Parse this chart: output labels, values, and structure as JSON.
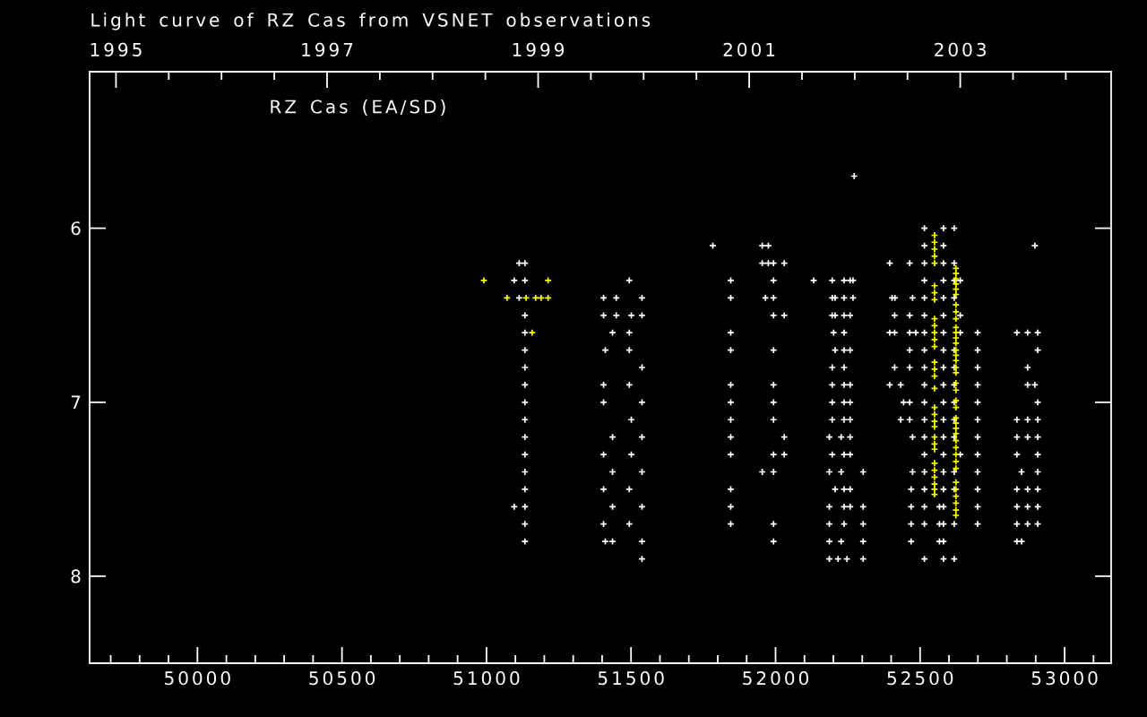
{
  "chart_data": {
    "type": "scatter",
    "title": "Light curve of RZ Cas from VSNET observations",
    "annotations": [
      "RZ Cas (EA/SD)"
    ],
    "marker": "cross",
    "xlim": [
      49627,
      53161
    ],
    "ylim": [
      8.5,
      5.1
    ],
    "xticks": [
      {
        "value": 49700,
        "label": null
      },
      {
        "value": 49800,
        "label": null
      },
      {
        "value": 49900,
        "label": null
      },
      50000,
      {
        "value": 50100,
        "label": null
      },
      {
        "value": 50200,
        "label": null
      },
      {
        "value": 50300,
        "label": null
      },
      {
        "value": 50400,
        "label": null
      },
      50500,
      {
        "value": 50600,
        "label": null
      },
      {
        "value": 50700,
        "label": null
      },
      {
        "value": 50800,
        "label": null
      },
      {
        "value": 50900,
        "label": null
      },
      51000,
      {
        "value": 51100,
        "label": null
      },
      {
        "value": 51200,
        "label": null
      },
      {
        "value": 51300,
        "label": null
      },
      {
        "value": 51400,
        "label": null
      },
      51500,
      {
        "value": 51600,
        "label": null
      },
      {
        "value": 51700,
        "label": null
      },
      {
        "value": 51800,
        "label": null
      },
      {
        "value": 51900,
        "label": null
      },
      52000,
      {
        "value": 52100,
        "label": null
      },
      {
        "value": 52200,
        "label": null
      },
      {
        "value": 52300,
        "label": null
      },
      {
        "value": 52400,
        "label": null
      },
      52500,
      {
        "value": 52600,
        "label": null
      },
      {
        "value": 52700,
        "label": null
      },
      {
        "value": 52800,
        "label": null
      },
      {
        "value": 52900,
        "label": null
      },
      53000,
      {
        "value": 53100,
        "label": null
      }
    ],
    "yticks": [
      6,
      7,
      8
    ],
    "x2lim": [
      1994.75,
      2004.43
    ],
    "x2ticks": [
      1995,
      {
        "value": 1995.5,
        "label": null
      },
      {
        "value": 1996,
        "label": null
      },
      {
        "value": 1996.5,
        "label": null
      },
      1997,
      {
        "value": 1997.5,
        "label": null
      },
      {
        "value": 1998,
        "label": null
      },
      {
        "value": 1998.5,
        "label": null
      },
      1999,
      {
        "value": 1999.5,
        "label": null
      },
      {
        "value": 2000,
        "label": null
      },
      {
        "value": 2000.5,
        "label": null
      },
      2001,
      {
        "value": 2001.5,
        "label": null
      },
      {
        "value": 2002,
        "label": null
      },
      {
        "value": 2002.5,
        "label": null
      },
      2003,
      {
        "value": 2003.5,
        "label": null
      },
      {
        "value": 2004,
        "label": null
      }
    ],
    "series": [
      {
        "color": "#ffffff",
        "x": [
          51113,
          51133,
          51096,
          51133,
          51113,
          51133,
          51133,
          51133,
          51133,
          51133,
          51133,
          51133,
          51133,
          51133,
          51133,
          51133,
          51096,
          51133,
          51133,
          51133,
          51494,
          51405,
          51449,
          51538,
          51405,
          51449,
          51501,
          51538,
          51436,
          51494,
          51411,
          51494,
          51538,
          51405,
          51494,
          51405,
          51538,
          51501,
          51436,
          51538,
          51405,
          51501,
          51436,
          51538,
          51405,
          51494,
          51436,
          51538,
          51405,
          51494,
          51411,
          51436,
          51538,
          51538,
          51783,
          51845,
          51845,
          51845,
          51845,
          51845,
          51845,
          51845,
          51845,
          51845,
          51845,
          51845,
          51845,
          51954,
          51975,
          51954,
          51975,
          51993,
          52030,
          51993,
          51965,
          51993,
          51993,
          52030,
          51993,
          51993,
          51993,
          51993,
          52030,
          51993,
          52030,
          51954,
          51993,
          51993,
          51993,
          52132,
          52196,
          52237,
          52258,
          52268,
          52272,
          52196,
          52206,
          52237,
          52268,
          52196,
          52206,
          52237,
          52258,
          52201,
          52237,
          52206,
          52237,
          52258,
          52196,
          52237,
          52196,
          52237,
          52258,
          52196,
          52237,
          52258,
          52196,
          52237,
          52258,
          52186,
          52227,
          52258,
          52196,
          52237,
          52258,
          52186,
          52227,
          52303,
          52206,
          52237,
          52258,
          52186,
          52237,
          52258,
          52303,
          52186,
          52237,
          52303,
          52186,
          52227,
          52303,
          52186,
          52216,
          52247,
          52303,
          52395,
          52464,
          52403,
          52413,
          52474,
          52412,
          52464,
          52395,
          52412,
          52464,
          52485,
          52464,
          52412,
          52464,
          52395,
          52433,
          52443,
          52464,
          52433,
          52464,
          52474,
          52474,
          52469,
          52469,
          52469,
          52469,
          52515,
          52581,
          52618,
          52515,
          52581,
          52515,
          52581,
          52618,
          52515,
          52581,
          52618,
          52639,
          52515,
          52581,
          52618,
          52515,
          52581,
          52639,
          52515,
          52581,
          52639,
          52515,
          52581,
          52618,
          52515,
          52581,
          52618,
          52515,
          52581,
          52618,
          52515,
          52581,
          52618,
          52515,
          52581,
          52618,
          52515,
          52581,
          52618,
          52515,
          52581,
          52639,
          52515,
          52581,
          52618,
          52515,
          52581,
          52618,
          52515,
          52567,
          52581,
          52515,
          52567,
          52581,
          52618,
          52567,
          52581,
          52515,
          52581,
          52618,
          52699,
          52699,
          52699,
          52699,
          52699,
          52699,
          52699,
          52699,
          52699,
          52699,
          52699,
          52699,
          52897,
          52835,
          52872,
          52907,
          52907,
          52872,
          52872,
          52897,
          52907,
          52835,
          52872,
          52907,
          52835,
          52872,
          52907,
          52835,
          52907,
          52851,
          52907,
          52835,
          52872,
          52907,
          52835,
          52872,
          52907,
          52835,
          52872,
          52907,
          52835,
          52851
        ],
        "values": [
          6.2,
          6.2,
          6.3,
          6.3,
          6.4,
          6.5,
          6.6,
          6.7,
          6.8,
          6.9,
          7.0,
          7.1,
          7.2,
          7.3,
          7.4,
          7.5,
          7.6,
          7.6,
          7.7,
          7.8,
          6.3,
          6.4,
          6.4,
          6.4,
          6.5,
          6.5,
          6.5,
          6.5,
          6.6,
          6.6,
          6.7,
          6.7,
          6.8,
          6.9,
          6.9,
          7.0,
          7.0,
          7.1,
          7.2,
          7.2,
          7.3,
          7.3,
          7.4,
          7.4,
          7.5,
          7.5,
          7.6,
          7.6,
          7.7,
          7.7,
          7.8,
          7.8,
          7.8,
          7.9,
          6.1,
          6.3,
          6.4,
          6.6,
          6.7,
          6.9,
          7.0,
          7.1,
          7.2,
          7.3,
          7.5,
          7.6,
          7.7,
          6.1,
          6.1,
          6.2,
          6.2,
          6.2,
          6.2,
          6.3,
          6.4,
          6.4,
          6.5,
          6.5,
          6.7,
          6.9,
          7.0,
          7.1,
          7.2,
          7.3,
          7.3,
          7.4,
          7.4,
          7.7,
          7.8,
          6.3,
          6.3,
          6.3,
          6.3,
          6.3,
          5.7,
          6.4,
          6.4,
          6.4,
          6.4,
          6.5,
          6.5,
          6.5,
          6.5,
          6.6,
          6.6,
          6.7,
          6.7,
          6.7,
          6.8,
          6.8,
          6.9,
          6.9,
          6.9,
          7.0,
          7.0,
          7.0,
          7.1,
          7.1,
          7.1,
          7.2,
          7.2,
          7.2,
          7.3,
          7.3,
          7.3,
          7.4,
          7.4,
          7.4,
          7.5,
          7.5,
          7.5,
          7.6,
          7.6,
          7.6,
          7.6,
          7.7,
          7.7,
          7.7,
          7.8,
          7.8,
          7.8,
          7.9,
          7.9,
          7.9,
          7.9,
          6.2,
          6.2,
          6.4,
          6.4,
          6.4,
          6.5,
          6.5,
          6.6,
          6.6,
          6.6,
          6.6,
          6.7,
          6.8,
          6.8,
          6.9,
          6.9,
          7.0,
          7.0,
          7.1,
          7.1,
          7.2,
          7.4,
          7.5,
          7.6,
          7.7,
          7.8,
          6.0,
          6.0,
          6.0,
          6.1,
          6.1,
          6.2,
          6.2,
          6.2,
          6.3,
          6.3,
          6.3,
          6.3,
          6.4,
          6.4,
          6.4,
          6.5,
          6.5,
          6.5,
          6.6,
          6.6,
          6.6,
          6.7,
          6.7,
          6.7,
          6.8,
          6.8,
          6.8,
          6.9,
          6.9,
          6.9,
          7.0,
          7.0,
          7.0,
          7.1,
          7.1,
          7.1,
          7.2,
          7.2,
          7.2,
          7.3,
          7.3,
          7.3,
          7.4,
          7.4,
          7.4,
          7.5,
          7.5,
          7.5,
          7.6,
          7.6,
          7.6,
          7.7,
          7.7,
          7.7,
          7.7,
          7.8,
          7.8,
          7.9,
          7.9,
          7.9,
          6.6,
          6.7,
          6.8,
          6.9,
          7.0,
          7.1,
          7.2,
          7.3,
          7.4,
          7.5,
          7.6,
          7.7,
          6.1,
          6.6,
          6.6,
          6.6,
          6.7,
          6.8,
          6.9,
          6.9,
          7.0,
          7.1,
          7.1,
          7.1,
          7.2,
          7.2,
          7.2,
          7.3,
          7.3,
          7.4,
          7.4,
          7.5,
          7.5,
          7.5,
          7.6,
          7.6,
          7.6,
          7.7,
          7.7,
          7.7,
          7.8,
          7.8
        ]
      },
      {
        "color": "#ffff00",
        "x": [
          50991,
          51071,
          51137,
          51158,
          51170,
          51189,
          51213,
          51213,
          52550,
          52550,
          52550,
          52550,
          52550,
          52550,
          52550,
          52550,
          52550,
          52550,
          52550,
          52550,
          52550,
          52550,
          52550,
          52550,
          52550,
          52550,
          52550,
          52550,
          52550,
          52550,
          52550,
          52550,
          52550,
          52550,
          52550,
          52550,
          52550,
          52550,
          52624,
          52624,
          52624,
          52624,
          52624,
          52624,
          52624,
          52624,
          52624,
          52624,
          52624,
          52624,
          52624,
          52624,
          52624,
          52624,
          52624,
          52624,
          52624,
          52624,
          52624,
          52624,
          52624,
          52624,
          52624,
          52624,
          52624,
          52624,
          52624,
          52624,
          52624,
          52624,
          52624,
          52624,
          52624,
          52624,
          52624
        ],
        "values": [
          6.3,
          6.4,
          6.4,
          6.6,
          6.4,
          6.4,
          6.3,
          6.4,
          6.04,
          6.08,
          6.12,
          6.16,
          6.2,
          6.33,
          6.37,
          6.41,
          6.52,
          6.56,
          6.6,
          6.64,
          6.68,
          6.77,
          6.81,
          6.85,
          6.92,
          7.03,
          7.07,
          7.11,
          7.14,
          7.2,
          7.24,
          7.27,
          7.35,
          7.39,
          7.43,
          7.47,
          7.5,
          7.53,
          6.23,
          6.26,
          6.29,
          6.32,
          6.35,
          6.38,
          6.44,
          6.48,
          6.52,
          6.57,
          6.6,
          6.63,
          6.66,
          6.7,
          6.73,
          6.76,
          6.8,
          6.83,
          6.89,
          6.93,
          6.99,
          7.03,
          7.09,
          7.12,
          7.15,
          7.18,
          7.22,
          7.26,
          7.3,
          7.34,
          7.38,
          7.46,
          7.5,
          7.54,
          7.58,
          7.62,
          7.65
        ]
      }
    ]
  }
}
